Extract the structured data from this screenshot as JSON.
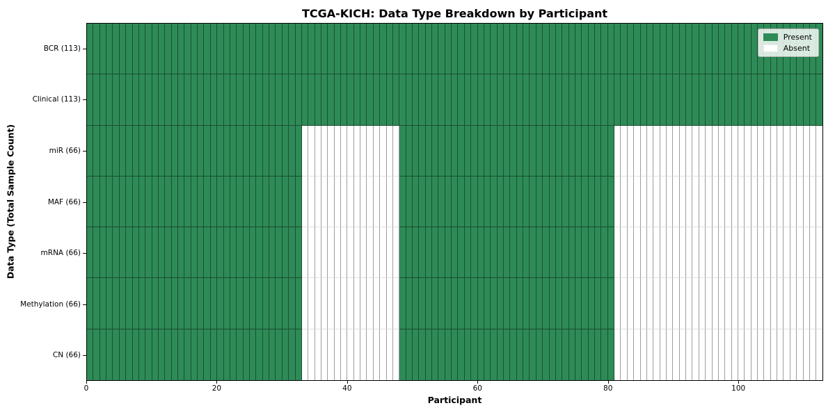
{
  "chart_data": {
    "type": "heatmap",
    "title": "TCGA-KICH: Data Type Breakdown by Participant",
    "xlabel": "Participant",
    "ylabel": "Data Type (Total Sample Count)",
    "x_ticks": [
      0,
      20,
      40,
      60,
      80,
      100
    ],
    "xlim": [
      0,
      113
    ],
    "n_participants": 113,
    "grid": false,
    "legend_position": "upper right",
    "legend": [
      {
        "label": "Present",
        "color": "#2e8b57"
      },
      {
        "label": "Absent",
        "color": "#ffffff"
      }
    ],
    "colors": {
      "present": "#2e8b57",
      "absent": "#ffffff",
      "cell_edge": "rgba(0,0,0,0.42)",
      "spine": "#000000"
    },
    "rows": [
      {
        "label": "BCR (113)",
        "data_type": "BCR",
        "total_samples": 113,
        "present_ranges": [
          [
            0,
            112
          ]
        ]
      },
      {
        "label": "Clinical (113)",
        "data_type": "Clinical",
        "total_samples": 113,
        "present_ranges": [
          [
            0,
            112
          ]
        ]
      },
      {
        "label": "miR (66)",
        "data_type": "miR",
        "total_samples": 66,
        "present_ranges": [
          [
            0,
            32
          ],
          [
            48,
            80
          ]
        ]
      },
      {
        "label": "MAF (66)",
        "data_type": "MAF",
        "total_samples": 66,
        "present_ranges": [
          [
            0,
            32
          ],
          [
            48,
            80
          ]
        ]
      },
      {
        "label": "mRNA (66)",
        "data_type": "mRNA",
        "total_samples": 66,
        "present_ranges": [
          [
            0,
            32
          ],
          [
            48,
            80
          ]
        ]
      },
      {
        "label": "Methylation (66)",
        "data_type": "Methylation",
        "total_samples": 66,
        "present_ranges": [
          [
            0,
            32
          ],
          [
            48,
            80
          ]
        ]
      },
      {
        "label": "CN (66)",
        "data_type": "CN",
        "total_samples": 66,
        "present_ranges": [
          [
            0,
            32
          ],
          [
            48,
            80
          ]
        ]
      }
    ]
  }
}
